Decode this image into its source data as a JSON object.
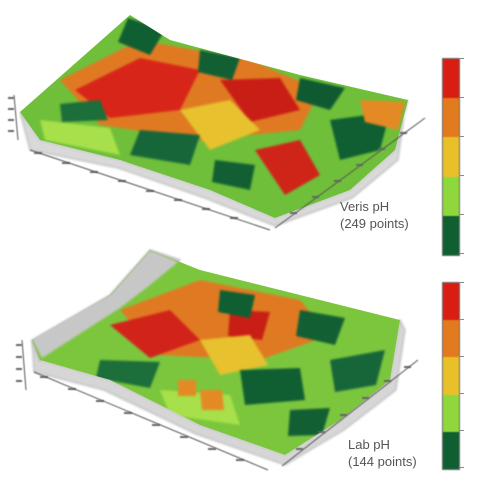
{
  "colors": {
    "low": "#0f5f32",
    "mid_low": "#8fd83c",
    "mid": "#e8c02a",
    "mid_high": "#e27a1e",
    "high": "#d81e12",
    "base": "#c8c8c8"
  },
  "chart_data": [
    {
      "type": "surface-3d",
      "caption_line1": "Veris pH",
      "caption_line2": "(249 points)",
      "colorbar_levels": 5,
      "grid": false
    },
    {
      "type": "surface-3d",
      "caption_line1": "Lab pH",
      "caption_line2": "(144 points)",
      "colorbar_levels": 5,
      "grid": false
    }
  ]
}
